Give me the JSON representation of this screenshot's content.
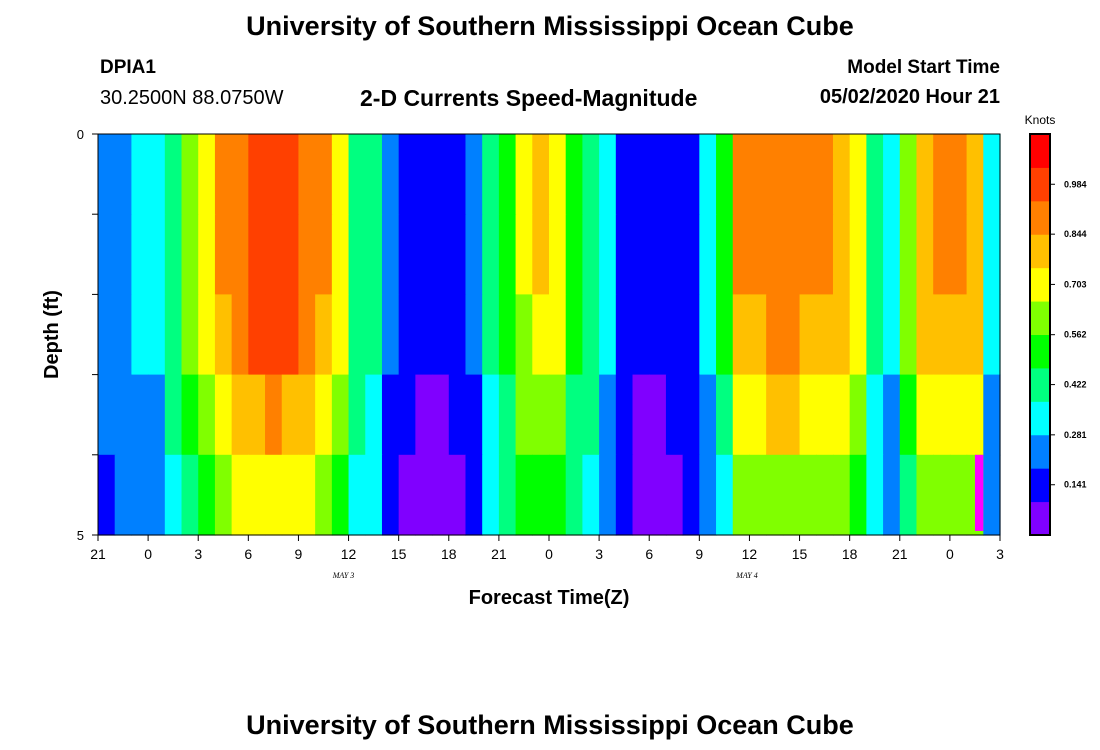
{
  "header": {
    "title": "University of Southern Mississippi Ocean Cube",
    "station_id": "DPIA1",
    "coordinates": "30.2500N 88.0750W",
    "subtitle": "2-D Currents Speed-Magnitude",
    "model_start_label": "Model Start Time",
    "model_start_value": "05/02/2020 Hour 21"
  },
  "footer": {
    "title": "University of Southern Mississippi Ocean Cube"
  },
  "chart_data": {
    "type": "heatmap",
    "title": "2-D Currents Speed-Magnitude",
    "xlabel": "Forecast Time(Z)",
    "ylabel": "Depth (ft)",
    "ylim": [
      0,
      5
    ],
    "y_ticks": [
      "0",
      "5"
    ],
    "x_tick_labels": [
      "21",
      "0",
      "3",
      "6",
      "9",
      "12",
      "15",
      "18",
      "21",
      "0",
      "3",
      "6",
      "9",
      "12",
      "15",
      "18",
      "21",
      "0",
      "3"
    ],
    "date_labels": [
      {
        "text": "MAY 3",
        "after_hour_index": 15
      },
      {
        "text": "MAY 4",
        "after_hour_index": 63
      }
    ],
    "forecast_hours": 54,
    "depth_bins": 5,
    "colorbar": {
      "label": "Knots",
      "min": 0.0,
      "max": 1.125,
      "ticks": [
        "0.141",
        "0.281",
        "0.422",
        "0.562",
        "0.703",
        "0.844",
        "0.984"
      ],
      "colors": [
        "#8000ff",
        "#0000ff",
        "#0080ff",
        "#00ffff",
        "#00ff80",
        "#00ff00",
        "#80ff00",
        "#ffff00",
        "#ffc000",
        "#ff8000",
        "#ff4000",
        "#ff0000"
      ]
    },
    "surface_speed_knots": [
      0.26,
      0.28,
      0.3,
      0.32,
      0.45,
      0.6,
      0.7,
      0.85,
      0.92,
      0.99,
      1.0,
      0.99,
      0.93,
      0.85,
      0.72,
      0.45,
      0.4,
      0.2,
      0.12,
      0.11,
      0.1,
      0.12,
      0.2,
      0.4,
      0.55,
      0.68,
      0.75,
      0.7,
      0.55,
      0.45,
      0.3,
      0.15,
      0.1,
      0.1,
      0.12,
      0.15,
      0.3,
      0.5,
      0.85,
      0.88,
      0.9,
      0.9,
      0.88,
      0.85,
      0.8,
      0.7,
      0.4,
      0.3,
      0.6,
      0.8,
      0.85,
      0.85,
      0.8,
      0.3
    ],
    "depth_factors": [
      1.0,
      1.0,
      0.95,
      0.85,
      0.72
    ],
    "markers": [
      {
        "type": "highlight",
        "hour_index": 52,
        "depth_bin": 4,
        "color": "#ff00ff"
      }
    ]
  }
}
